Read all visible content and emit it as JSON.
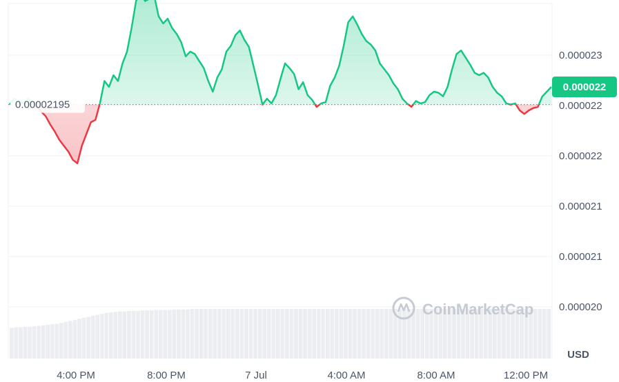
{
  "colors": {
    "up": "#16c784",
    "down": "#ea3943",
    "grid": "#eff2f5",
    "volume": "#e2e5ea",
    "reference": "#ea3943"
  },
  "watermark": {
    "text": "CoinMarketCap",
    "icon": "coinmarketcap-logo-icon"
  },
  "chart_data": {
    "type": "area",
    "y_ticks": [
      "0.000023",
      "0.000022",
      "0.000022",
      "0.000021",
      "0.000021",
      "0.000020"
    ],
    "x_ticks": [
      "4:00 PM",
      "8:00 PM",
      "7 Jul",
      "4:00 AM",
      "8:00 AM",
      "12:00 PM"
    ],
    "unit": "USD",
    "reference_value": 2.195e-05,
    "reference_label": "0.00002195",
    "current_label": "0.000022",
    "ylim": [
      2.023e-05,
      2.237e-05
    ],
    "grid": true,
    "price": [
      2.195e-05,
      2.2e-05,
      2.198e-05,
      2.196e-05,
      2.2e-05,
      2.197e-05,
      2.193e-05,
      2.189e-05,
      2.185e-05,
      2.178e-05,
      2.172e-05,
      2.165e-05,
      2.16e-05,
      2.155e-05,
      2.148e-05,
      2.145e-05,
      2.16e-05,
      2.17e-05,
      2.18e-05,
      2.182e-05,
      2.196e-05,
      2.215e-05,
      2.21e-05,
      2.22e-05,
      2.215e-05,
      2.23e-05,
      2.24e-05,
      2.26e-05,
      2.283e-05,
      2.29e-05,
      2.283e-05,
      2.285e-05,
      2.288e-05,
      2.27e-05,
      2.264e-05,
      2.268e-05,
      2.26e-05,
      2.255e-05,
      2.248e-05,
      2.236e-05,
      2.24e-05,
      2.238e-05,
      2.232e-05,
      2.226e-05,
      2.215e-05,
      2.206e-05,
      2.218e-05,
      2.225e-05,
      2.24e-05,
      2.245e-05,
      2.254e-05,
      2.258e-05,
      2.25e-05,
      2.244e-05,
      2.228e-05,
      2.212e-05,
      2.195e-05,
      2.2e-05,
      2.196e-05,
      2.203e-05,
      2.217e-05,
      2.23e-05,
      2.226e-05,
      2.221e-05,
      2.208e-05,
      2.214e-05,
      2.203e-05,
      2.199e-05,
      2.193e-05,
      2.196e-05,
      2.197e-05,
      2.211e-05,
      2.218e-05,
      2.228e-05,
      2.245e-05,
      2.265e-05,
      2.27e-05,
      2.263e-05,
      2.255e-05,
      2.249e-05,
      2.246e-05,
      2.241e-05,
      2.23e-05,
      2.225e-05,
      2.22e-05,
      2.213e-05,
      2.208e-05,
      2.2e-05,
      2.196e-05,
      2.193e-05,
      2.198e-05,
      2.196e-05,
      2.197e-05,
      2.203e-05,
      2.206e-05,
      2.205e-05,
      2.202e-05,
      2.21e-05,
      2.225e-05,
      2.238e-05,
      2.241e-05,
      2.235e-05,
      2.229e-05,
      2.222e-05,
      2.22e-05,
      2.222e-05,
      2.218e-05,
      2.21e-05,
      2.205e-05,
      2.202e-05,
      2.196e-05,
      2.195e-05,
      2.196e-05,
      2.19e-05,
      2.187e-05,
      2.19e-05,
      2.192e-05,
      2.193e-05,
      2.202e-05,
      2.206e-05,
      2.21e-05
    ],
    "volume_level": [
      0.62,
      0.63,
      0.63,
      0.64,
      0.64,
      0.65,
      0.66,
      0.67,
      0.68,
      0.69,
      0.7,
      0.72,
      0.74,
      0.76,
      0.78,
      0.8,
      0.82,
      0.84,
      0.86,
      0.88,
      0.9,
      0.92,
      0.93,
      0.94,
      0.95,
      0.95,
      0.96,
      0.96,
      0.96,
      0.97,
      0.97,
      0.97,
      0.98,
      0.98,
      0.98,
      0.98,
      0.99,
      0.99,
      0.99,
      0.99,
      1.0,
      1.0,
      1.0,
      1.0,
      1.0,
      1.0,
      1.0,
      1.0,
      1.0,
      1.0,
      1.0,
      1.0,
      1.0,
      1.0,
      1.0,
      1.0,
      1.0,
      1.0,
      1.0,
      1.0,
      1.0,
      1.0,
      1.0,
      1.0,
      1.0,
      1.0,
      1.0,
      1.0,
      1.0,
      1.0,
      1.0,
      1.0,
      1.0,
      1.0,
      1.0,
      1.0,
      1.0,
      1.0,
      1.0,
      1.0,
      1.0,
      1.0,
      1.0,
      1.0,
      1.0,
      1.0,
      1.0,
      1.0,
      1.0,
      1.0,
      1.0,
      1.0,
      1.0,
      1.0,
      1.0,
      1.0,
      1.0,
      1.0,
      1.0,
      1.0,
      1.0,
      1.0,
      1.0,
      1.0,
      1.0,
      1.0,
      1.0,
      1.0,
      1.0,
      1.0,
      1.0,
      1.0,
      1.0,
      1.0,
      1.0,
      1.0,
      1.0,
      1.0,
      1.0,
      1.0
    ]
  }
}
